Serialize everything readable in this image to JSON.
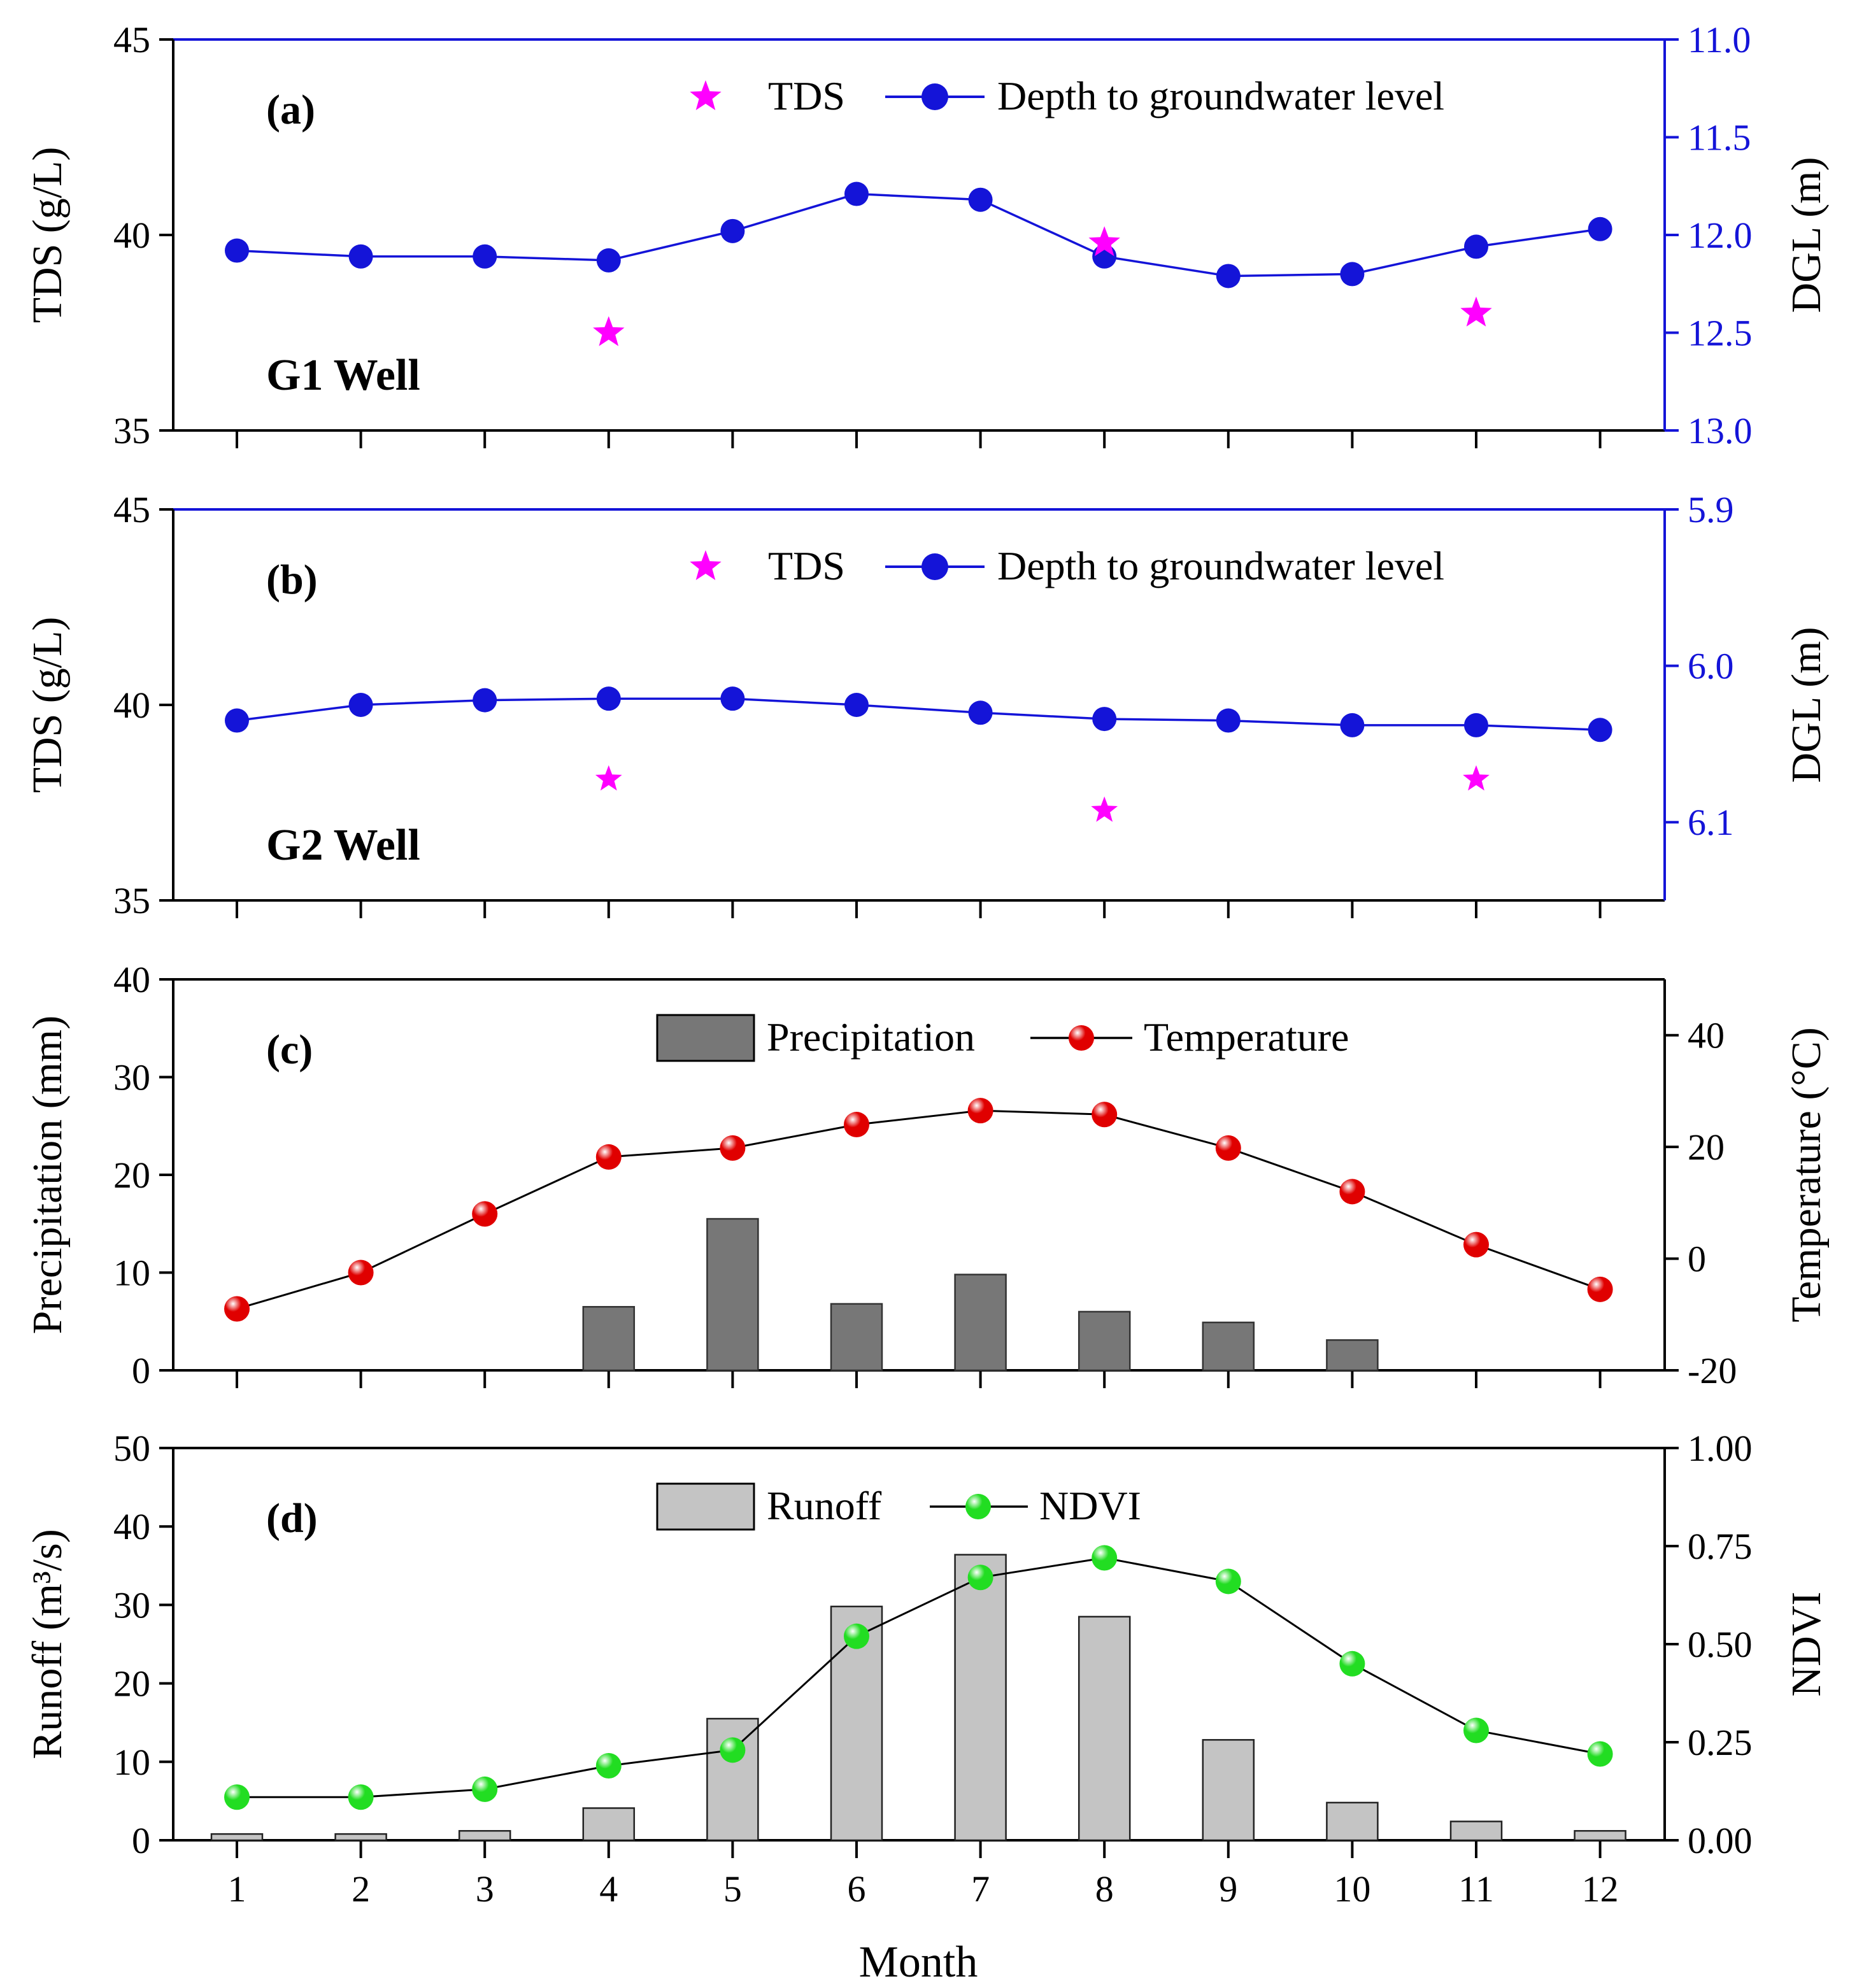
{
  "x_label": "Month",
  "months": [
    1,
    2,
    3,
    4,
    5,
    6,
    7,
    8,
    9,
    10,
    11,
    12
  ],
  "colors": {
    "tds": "#ff00ff",
    "dgl": "#1414d8",
    "precip_bar": "#777777",
    "runoff_bar": "#c4c4c4",
    "temperature": "#e00000",
    "ndvi": "#22dd22"
  },
  "chart_data": [
    {
      "id": "a",
      "type": "line",
      "panel_label": "(a)",
      "well_label": "G1 Well",
      "ylabel_left": "TDS (g/L)",
      "ylabel_right": "DGL (m)",
      "ylim_left": [
        35,
        45
      ],
      "yticks_left": [
        35,
        40,
        45
      ],
      "ylim_right": [
        11.0,
        13.0
      ],
      "yticks_right": [
        "11.0",
        "11.5",
        "12.0",
        "12.5",
        "13.0"
      ],
      "right_inverted": true,
      "legend": [
        "TDS",
        "Depth to groundwater level"
      ],
      "tds": {
        "x": [
          4,
          8,
          11
        ],
        "y": [
          37.5,
          39.8,
          38.0
        ]
      },
      "dgl": {
        "x": [
          1,
          2,
          3,
          4,
          5,
          6,
          7,
          8,
          9,
          10,
          11,
          12
        ],
        "y": [
          12.08,
          12.11,
          12.11,
          12.13,
          11.98,
          11.79,
          11.82,
          12.11,
          12.21,
          12.2,
          12.06,
          11.97
        ]
      }
    },
    {
      "id": "b",
      "type": "line",
      "panel_label": "(b)",
      "well_label": "G2 Well",
      "ylabel_left": "TDS (g/L)",
      "ylabel_right": "DGL (m)",
      "ylim_left": [
        35,
        45
      ],
      "yticks_left": [
        35,
        40,
        45
      ],
      "ylim_right": [
        5.9,
        6.15
      ],
      "yticks_right": [
        "5.9",
        "6.0",
        "6.1"
      ],
      "right_inverted": true,
      "legend": [
        "TDS",
        "Depth to groundwater level"
      ],
      "tds": {
        "x": [
          4,
          8,
          11
        ],
        "y": [
          38.1,
          37.3,
          38.1
        ]
      },
      "dgl": {
        "x": [
          1,
          2,
          3,
          4,
          5,
          6,
          7,
          8,
          9,
          10,
          11,
          12
        ],
        "y": [
          6.035,
          6.025,
          6.022,
          6.021,
          6.021,
          6.025,
          6.03,
          6.034,
          6.035,
          6.038,
          6.038,
          6.041
        ]
      }
    },
    {
      "id": "c",
      "type": "bar+line",
      "panel_label": "(c)",
      "ylabel_left": "Precipitation (mm)",
      "ylabel_right": "Temperature (°C)",
      "ylim_left": [
        0,
        40
      ],
      "yticks_left": [
        0,
        10,
        20,
        30,
        40
      ],
      "ylim_right": [
        -20,
        50
      ],
      "yticks_right": [
        "-20",
        "0",
        "20",
        "40"
      ],
      "legend": [
        "Precipitation",
        "Temperature"
      ],
      "precipitation": [
        0,
        0,
        0,
        6.5,
        15.5,
        6.8,
        9.8,
        6.0,
        4.9,
        3.1,
        0,
        0
      ],
      "temperature": [
        -9.0,
        -2.5,
        8.0,
        18.2,
        19.8,
        24.0,
        26.5,
        25.8,
        19.8,
        12.0,
        2.5,
        -5.5
      ]
    },
    {
      "id": "d",
      "type": "bar+line",
      "panel_label": "(d)",
      "ylabel_left": "Runoff (m³/s)",
      "ylabel_right": "NDVI",
      "ylim_left": [
        0,
        50
      ],
      "yticks_left": [
        0,
        10,
        20,
        30,
        40,
        50
      ],
      "ylim_right": [
        0,
        1.0
      ],
      "yticks_right": [
        "0.00",
        "0.25",
        "0.50",
        "0.75",
        "1.00"
      ],
      "legend": [
        "Runoff",
        "NDVI"
      ],
      "runoff": [
        0.8,
        0.8,
        1.2,
        4.1,
        15.5,
        29.8,
        36.4,
        28.5,
        12.8,
        4.8,
        2.4,
        1.2
      ],
      "ndvi": [
        0.11,
        0.11,
        0.13,
        0.19,
        0.23,
        0.52,
        0.67,
        0.72,
        0.66,
        0.45,
        0.28,
        0.22
      ]
    }
  ]
}
